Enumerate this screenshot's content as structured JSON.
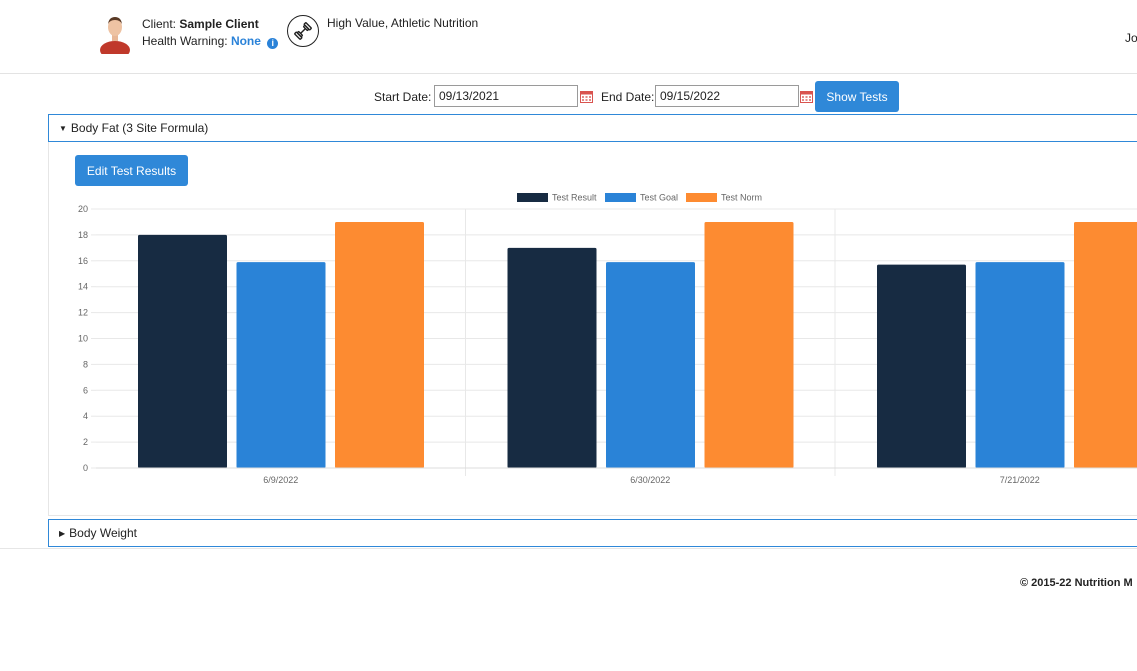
{
  "header": {
    "client_label": "Client:",
    "client_name": "Sample Client",
    "health_label": "Health Warning:",
    "health_value": "None",
    "program": "High Value, Athletic Nutrition",
    "user_clip": "Jo",
    "program_icon": "dumbbell-icon",
    "avatar_icon": "client-avatar"
  },
  "filter": {
    "start_label": "Start Date:",
    "start_value": "09/13/2021",
    "end_label": "End Date:",
    "end_value": "09/15/2022",
    "button": "Show Tests"
  },
  "panels": [
    {
      "title": "Body Fat (3 Site Formula)",
      "expanded": true,
      "edit_button": "Edit Test Results"
    },
    {
      "title": "Body Weight",
      "expanded": false
    }
  ],
  "chart_data": {
    "type": "bar",
    "categories": [
      "6/9/2022",
      "6/30/2022",
      "7/21/2022"
    ],
    "series": [
      {
        "name": "Test Result",
        "color": "#172b42",
        "values": [
          18,
          17,
          15.7
        ]
      },
      {
        "name": "Test Goal",
        "color": "#2a83d7",
        "values": [
          15.9,
          15.9,
          15.9
        ]
      },
      {
        "name": "Test Norm",
        "color": "#fd8b31",
        "values": [
          19,
          19,
          19
        ]
      }
    ],
    "ylim": [
      0,
      20
    ],
    "yticks": [
      0,
      2,
      4,
      6,
      8,
      10,
      12,
      14,
      16,
      18,
      20
    ],
    "grid": true,
    "legend": "top-center"
  },
  "footer": {
    "copyright": "© 2015-22 Nutrition M"
  },
  "colors": {
    "accent": "#2f88d8",
    "dark": "#172b42",
    "orange": "#fd8b31"
  }
}
